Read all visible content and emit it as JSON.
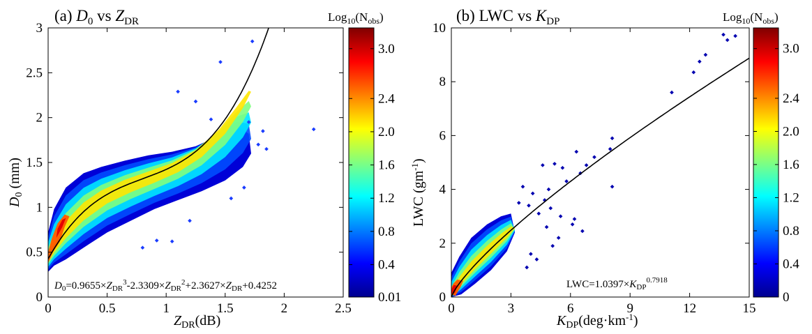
{
  "colors": {
    "colormap": [
      "#00008f",
      "#0000ff",
      "#0080ff",
      "#00ffff",
      "#80ff80",
      "#ffff00",
      "#ff8000",
      "#ff0000",
      "#800000"
    ],
    "fit_line": "#000000",
    "axes": "#000000"
  },
  "chart_data": [
    {
      "panel": "a",
      "type": "scatter",
      "title_prefix": "(a) ",
      "title_main": "D",
      "title_main_sub": "0",
      "title_vs": " vs ",
      "title_x": "Z",
      "title_x_sub": "DR",
      "xlabel_main": "Z",
      "xlabel_sub": "DR",
      "xlabel_unit": "(dB)",
      "ylabel_main": "D",
      "ylabel_sub": "0",
      "ylabel_unit": " (mm)",
      "xlim": [
        0,
        2.5
      ],
      "ylim": [
        0,
        3
      ],
      "xticks": [
        0,
        0.5,
        1,
        1.5,
        2,
        2.5
      ],
      "xtick_labels": [
        "0",
        "0.5",
        "1",
        "1.5",
        "2",
        "2.5"
      ],
      "yticks": [
        0,
        0.5,
        1,
        1.5,
        2,
        2.5,
        3
      ],
      "ytick_labels": [
        "0",
        "0.5",
        "1",
        "1.5",
        "2",
        "2.5",
        "3"
      ],
      "fit": {
        "form": "cubic",
        "coefficients": [
          0.9655,
          -2.3309,
          2.3627,
          0.4252
        ],
        "x_range": [
          0,
          1.87
        ]
      },
      "equation": {
        "lhs": "D",
        "lhs_sub": "0",
        "c3": "=0.9655×",
        "v": "Z",
        "v_sub": "DR",
        "p3": "3",
        "c2": "-2.3309×",
        "p2": "2",
        "c1": "+2.3627×",
        "c0": "+0.4252"
      },
      "colorbar": {
        "title_main": "Log",
        "title_sub1": "10",
        "title_open": "(N",
        "title_sub2": "obs",
        "title_close": ")",
        "ticks": [
          0.01,
          0.4,
          0.8,
          1.2,
          1.6,
          2.0,
          2.4,
          3.0
        ],
        "tick_labels": [
          "0.01",
          "0.4",
          "0.8",
          "1.2",
          "1.6",
          "2.0",
          "2.4",
          "3.0"
        ],
        "range": [
          0.01,
          3.25
        ]
      },
      "density_outline": [
        [
          0.0,
          0.28
        ],
        [
          0.05,
          0.35
        ],
        [
          0.15,
          0.42
        ],
        [
          0.3,
          0.55
        ],
        [
          0.5,
          0.72
        ],
        [
          0.7,
          0.85
        ],
        [
          0.9,
          0.98
        ],
        [
          1.1,
          1.08
        ],
        [
          1.3,
          1.18
        ],
        [
          1.5,
          1.3
        ],
        [
          1.65,
          1.45
        ],
        [
          1.72,
          1.6
        ],
        [
          1.7,
          1.82
        ],
        [
          1.6,
          1.9
        ],
        [
          1.45,
          1.8
        ],
        [
          1.25,
          1.68
        ],
        [
          1.05,
          1.62
        ],
        [
          0.85,
          1.58
        ],
        [
          0.65,
          1.52
        ],
        [
          0.45,
          1.45
        ],
        [
          0.3,
          1.38
        ],
        [
          0.15,
          1.22
        ],
        [
          0.05,
          0.98
        ],
        [
          0.0,
          0.72
        ]
      ],
      "outliers": [
        [
          2.25,
          1.87
        ],
        [
          1.73,
          2.85
        ],
        [
          1.46,
          2.62
        ],
        [
          1.1,
          2.29
        ],
        [
          1.25,
          2.18
        ],
        [
          1.38,
          1.98
        ],
        [
          1.82,
          1.85
        ],
        [
          1.78,
          1.7
        ],
        [
          1.66,
          1.22
        ],
        [
          1.55,
          1.1
        ],
        [
          1.2,
          0.85
        ],
        [
          1.05,
          0.62
        ],
        [
          0.92,
          0.63
        ],
        [
          0.8,
          0.55
        ],
        [
          1.85,
          1.65
        ],
        [
          1.7,
          1.95
        ]
      ]
    },
    {
      "panel": "b",
      "type": "scatter",
      "title_prefix": "(b) LWC vs ",
      "title_x": "K",
      "title_x_sub": "DP",
      "xlabel_main": "K",
      "xlabel_sub": "DP",
      "xlabel_unit_pre": "(deg·km",
      "xlabel_unit_sup": "-1",
      "xlabel_unit_post": ")",
      "ylabel_pre": "LWC (gm",
      "ylabel_sup": "-1",
      "ylabel_post": ")",
      "xlim": [
        0,
        15
      ],
      "ylim": [
        0,
        10
      ],
      "xticks": [
        0,
        3,
        6,
        9,
        12,
        15
      ],
      "xtick_labels": [
        "0",
        "3",
        "6",
        "9",
        "12",
        "15"
      ],
      "yticks": [
        0,
        2,
        4,
        6,
        8,
        10
      ],
      "ytick_labels": [
        "0",
        "2",
        "4",
        "6",
        "8",
        "10"
      ],
      "fit": {
        "form": "power",
        "a": 1.0397,
        "b": 0.7918,
        "x_range": [
          0,
          15
        ]
      },
      "equation": {
        "lhs": "LWC=1.0397×",
        "v": "K",
        "v_sub": "DP",
        "exp": "0.7918"
      },
      "colorbar": {
        "title_main": "Log",
        "title_sub1": "10",
        "title_open": "(N",
        "title_sub2": "obs",
        "title_close": ")",
        "ticks": [
          0,
          0.4,
          0.8,
          1.2,
          1.6,
          2.0,
          2.4,
          3.0
        ],
        "tick_labels": [
          "0",
          "0.4",
          "0.8",
          "1.2",
          "1.6",
          "2.0",
          "2.4",
          "3.0"
        ],
        "range": [
          0,
          3.25
        ]
      },
      "density_outline": [
        [
          0.0,
          0.0
        ],
        [
          0.5,
          0.1
        ],
        [
          1.2,
          0.5
        ],
        [
          2.0,
          1.0
        ],
        [
          2.8,
          1.7
        ],
        [
          3.2,
          2.4
        ],
        [
          3.0,
          3.1
        ],
        [
          2.5,
          3.0
        ],
        [
          1.8,
          2.7
        ],
        [
          1.0,
          2.2
        ],
        [
          0.4,
          1.5
        ],
        [
          0.0,
          0.9
        ]
      ],
      "outliers": [
        [
          13.7,
          9.75
        ],
        [
          14.3,
          9.7
        ],
        [
          13.9,
          9.55
        ],
        [
          12.8,
          9.0
        ],
        [
          12.5,
          8.75
        ],
        [
          12.2,
          8.35
        ],
        [
          11.1,
          7.6
        ],
        [
          8.1,
          5.9
        ],
        [
          8.0,
          5.5
        ],
        [
          8.1,
          4.1
        ],
        [
          7.2,
          5.2
        ],
        [
          6.8,
          4.9
        ],
        [
          6.5,
          4.6
        ],
        [
          6.3,
          5.4
        ],
        [
          5.8,
          4.3
        ],
        [
          5.6,
          4.8
        ],
        [
          5.2,
          4.95
        ],
        [
          4.9,
          4.0
        ],
        [
          4.6,
          4.9
        ],
        [
          6.2,
          2.9
        ],
        [
          6.1,
          2.7
        ],
        [
          6.6,
          2.45
        ],
        [
          5.5,
          3.0
        ],
        [
          5.0,
          3.3
        ],
        [
          4.7,
          3.6
        ],
        [
          4.4,
          3.1
        ],
        [
          4.1,
          3.85
        ],
        [
          3.9,
          3.4
        ],
        [
          3.6,
          4.1
        ],
        [
          3.4,
          3.5
        ],
        [
          4.0,
          1.6
        ],
        [
          4.3,
          1.4
        ],
        [
          3.8,
          1.1
        ],
        [
          5.1,
          1.9
        ],
        [
          5.4,
          2.2
        ],
        [
          4.8,
          2.6
        ]
      ]
    }
  ]
}
